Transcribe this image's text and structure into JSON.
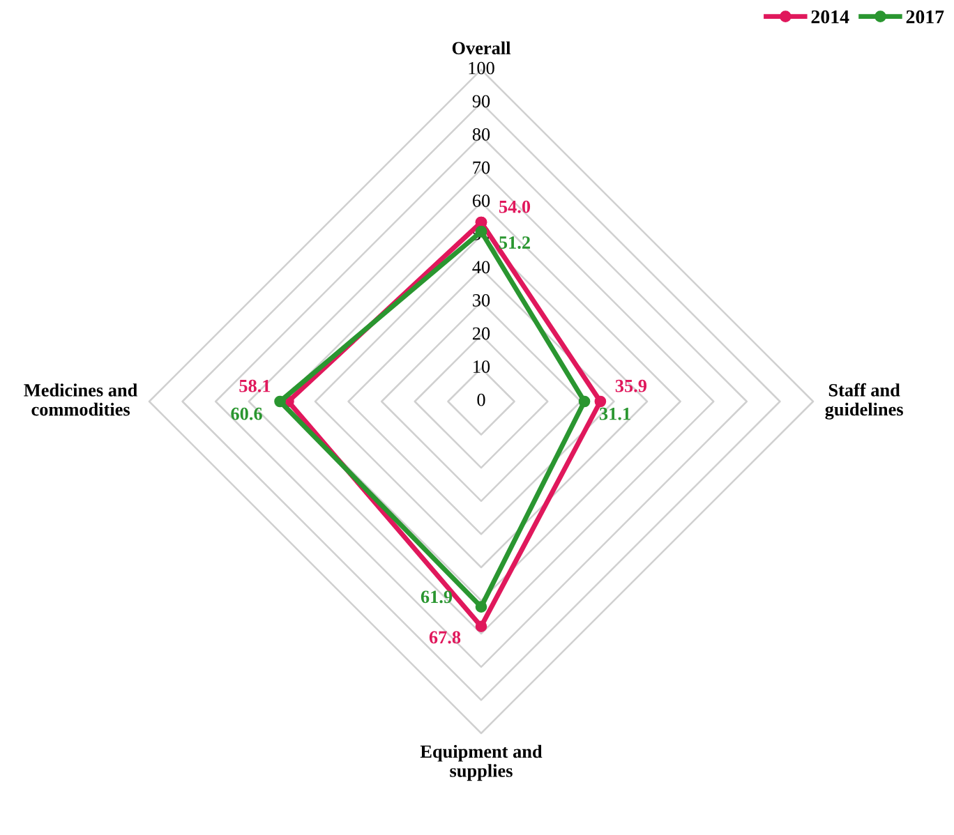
{
  "chart_data": {
    "type": "radar",
    "categories": [
      "Overall",
      "Staff and\nguidelines",
      "Equipment and\nsupplies",
      "Medicines and\ncommodities"
    ],
    "series": [
      {
        "name": "2014",
        "color": "#e0185c",
        "values": [
          54.0,
          35.9,
          67.8,
          58.1
        ],
        "value_labels": [
          "54.0",
          "35.9",
          "67.8",
          "58.1"
        ]
      },
      {
        "name": "2017",
        "color": "#2a9630",
        "values": [
          51.2,
          31.1,
          61.9,
          60.6
        ],
        "value_labels": [
          "51.2",
          "31.1",
          "61.9",
          "60.6"
        ]
      }
    ],
    "ylim": [
      0,
      100
    ],
    "yticks": [
      0,
      10,
      20,
      30,
      40,
      50,
      60,
      70,
      80,
      90,
      100
    ],
    "grid": true,
    "legend": "top right",
    "marker": "circle"
  }
}
